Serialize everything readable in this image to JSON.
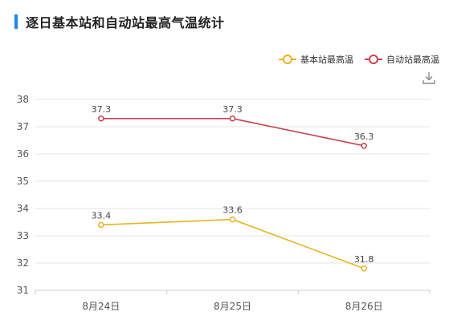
{
  "header": {
    "title": "逐日基本站和自动站最高气温统计"
  },
  "icons": {
    "download": "download-icon"
  },
  "colors": {
    "accent": "#1e88e5",
    "basic": "#e8b422",
    "auto": "#c9424f",
    "grid": "#e6e6e6",
    "axis": "#cccccc"
  },
  "chart_data": {
    "type": "line",
    "title": "逐日基本站和自动站最高气温统计",
    "categories": [
      "8月24日",
      "8月25日",
      "8月26日"
    ],
    "series": [
      {
        "name": "基本站最高温",
        "values": [
          33.4,
          33.6,
          31.8
        ],
        "color": "#e8b422"
      },
      {
        "name": "自动站最高温",
        "values": [
          37.3,
          37.3,
          36.3
        ],
        "color": "#c9424f"
      }
    ],
    "ylim": [
      31,
      38
    ],
    "yticks": [
      31,
      32,
      33,
      34,
      35,
      36,
      37,
      38
    ],
    "grid": true,
    "legend": "top-right",
    "data_labels": true
  }
}
